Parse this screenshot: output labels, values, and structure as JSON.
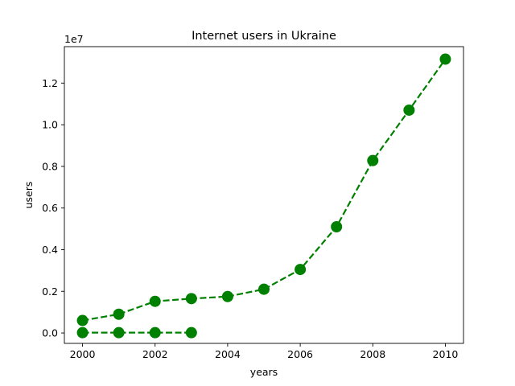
{
  "chart_data": {
    "type": "line",
    "title": "Internet users in Ukraine",
    "xlabel": "years",
    "ylabel": "users",
    "y_offset_label": "1e7",
    "xlim": [
      1999.5,
      2010.5
    ],
    "ylim": [
      -500000,
      13750000
    ],
    "x_ticks": [
      2000,
      2002,
      2004,
      2006,
      2008,
      2010
    ],
    "x_tick_labels": [
      "2000",
      "2002",
      "2004",
      "2006",
      "2008",
      "2010"
    ],
    "y_ticks": [
      0,
      2000000,
      4000000,
      6000000,
      8000000,
      10000000,
      12000000
    ],
    "y_tick_labels": [
      "0.0",
      "0.2",
      "0.4",
      "0.6",
      "0.8",
      "1.0",
      "1.2"
    ],
    "grid": false,
    "series": [
      {
        "color": "#008000",
        "line_style": "dashed",
        "marker": "circle",
        "x": [
          2000,
          2001,
          2002,
          2003,
          2004,
          2005,
          2006,
          2007,
          2008,
          2009,
          2010
        ],
        "y": [
          600000,
          900000,
          1520000,
          1650000,
          1750000,
          2100000,
          3050000,
          5100000,
          8280000,
          10700000,
          13150000
        ]
      },
      {
        "color": "#008000",
        "line_style": "dashed",
        "marker": "circle",
        "x": [
          2000,
          2001,
          2002,
          2003
        ],
        "y": [
          15000,
          15000,
          15000,
          15000
        ]
      }
    ]
  }
}
